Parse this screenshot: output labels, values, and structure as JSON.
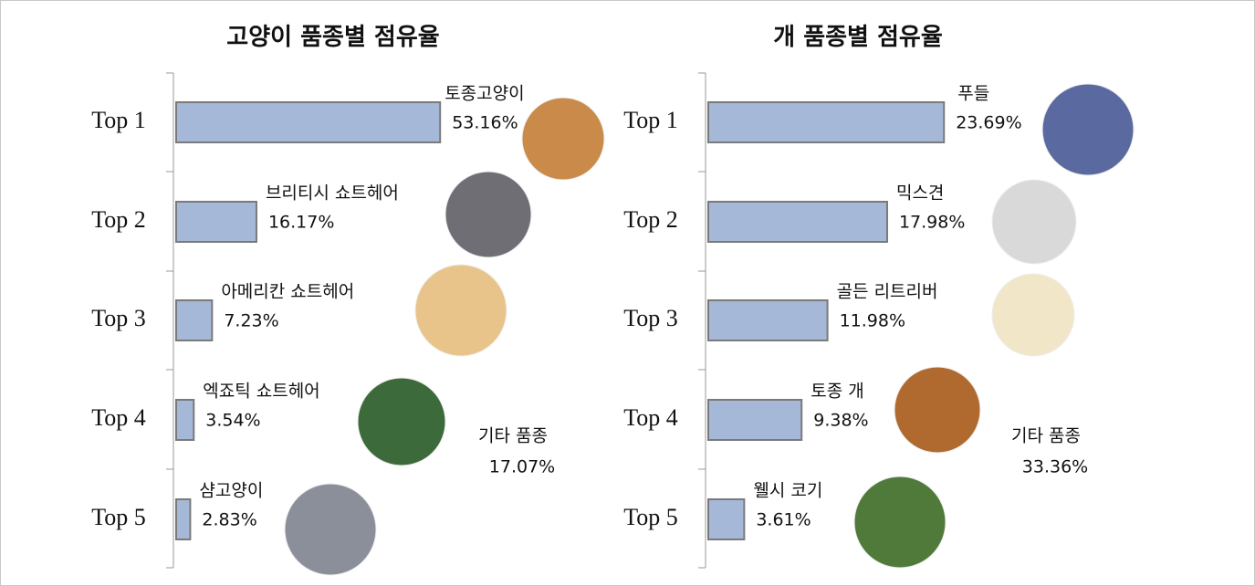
{
  "chart_data": [
    {
      "type": "bar",
      "title": "고양이 품종별 점유율",
      "categories": [
        "Top 1",
        "Top 2",
        "Top 3",
        "Top 4",
        "Top 5"
      ],
      "breeds": [
        "토종고양이",
        "브리티시 쇼트헤어",
        "아메리칸 쇼트헤어",
        "엑죠틱 쇼트헤어",
        "샴고양이"
      ],
      "values": [
        53.16,
        16.17,
        7.23,
        3.54,
        2.83
      ],
      "value_labels": [
        "53.16%",
        "16.17%",
        "7.23%",
        "3.54%",
        "2.83%"
      ],
      "other": {
        "label": "기타 품종",
        "value": 17.07,
        "value_label": "17.07%"
      },
      "color": "#a5b8d7"
    },
    {
      "type": "bar",
      "title": "개 품종별 점유율",
      "categories": [
        "Top 1",
        "Top 2",
        "Top 3",
        "Top 4",
        "Top 5"
      ],
      "breeds": [
        "푸들",
        "믹스견",
        "골든 리트리버",
        "토종 개",
        "웰시 코기"
      ],
      "values": [
        23.69,
        17.98,
        11.98,
        9.38,
        3.61
      ],
      "value_labels": [
        "23.69%",
        "17.98%",
        "11.98%",
        "9.38%",
        "3.61%"
      ],
      "other": {
        "label": "기타 품종",
        "value": 33.36,
        "value_label": "33.36%"
      },
      "color": "#a5b8d7"
    }
  ]
}
